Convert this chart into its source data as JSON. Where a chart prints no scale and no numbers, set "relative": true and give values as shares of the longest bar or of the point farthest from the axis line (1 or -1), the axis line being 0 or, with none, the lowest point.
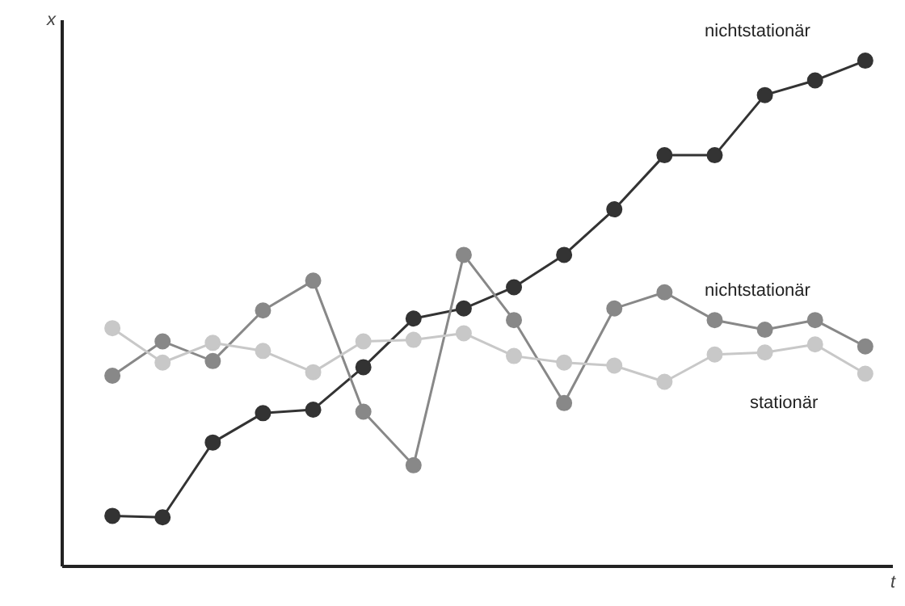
{
  "chart_data": {
    "type": "line",
    "relative": true,
    "xlabel": "t",
    "ylabel": "x",
    "marker": "circle",
    "tick_labels": false,
    "categories": [
      null,
      null,
      null,
      null,
      null,
      null,
      null,
      null,
      null,
      null,
      null,
      null,
      null,
      null,
      null,
      null
    ],
    "series": [
      {
        "name": "nichtstationär",
        "color": "#333333",
        "values": [
          0.1,
          0.097,
          0.245,
          0.303,
          0.31,
          0.394,
          0.49,
          0.51,
          0.552,
          0.616,
          0.706,
          0.813,
          0.813,
          0.932,
          0.961,
          1
        ]
      },
      {
        "name": "nichtstationär",
        "color": "#888888",
        "values": [
          0.377,
          0.445,
          0.406,
          0.506,
          0.565,
          0.306,
          0.2,
          0.616,
          0.487,
          0.323,
          0.51,
          0.542,
          0.487,
          0.468,
          0.487,
          0.435
        ]
      },
      {
        "name": "stationär",
        "color": "#c8c8c8",
        "values": [
          0.471,
          0.403,
          0.442,
          0.426,
          0.384,
          0.445,
          0.448,
          0.461,
          0.416,
          0.403,
          0.397,
          0.365,
          0.419,
          0.423,
          0.439,
          0.381
        ]
      }
    ]
  }
}
